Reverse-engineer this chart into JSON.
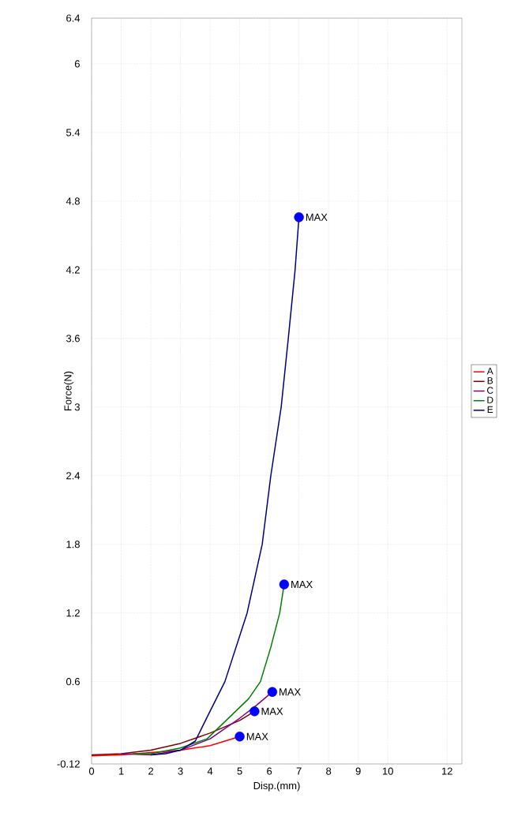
{
  "chart_data": {
    "type": "line",
    "xlabel": "Disp.(mm)",
    "ylabel": "Force(N)",
    "xlim": [
      0,
      12.5
    ],
    "xticks": [
      0,
      1,
      2,
      3,
      4,
      5,
      6,
      7,
      8,
      9,
      10,
      12
    ],
    "ylim": [
      -0.12,
      6.4
    ],
    "yticks": [
      -0.12,
      0.6,
      1.2,
      1.8,
      2.4,
      3,
      3.6,
      4.2,
      4.8,
      5.4,
      6,
      6.4
    ],
    "grid": true,
    "legend": "right",
    "line_style": "solid",
    "series": [
      {
        "name": "A",
        "color": "#ff0000",
        "x": [
          0,
          1,
          2,
          3,
          4,
          4.5,
          5
        ],
        "values": [
          -0.05,
          -0.04,
          -0.02,
          0.0,
          0.04,
          0.08,
          0.12
        ]
      },
      {
        "name": "B",
        "color": "#800000",
        "x": [
          0,
          1,
          2,
          3,
          4,
          5,
          5.5
        ],
        "values": [
          -0.04,
          -0.03,
          0.0,
          0.06,
          0.15,
          0.26,
          0.34
        ]
      },
      {
        "name": "C",
        "color": "#800080",
        "x": [
          1,
          2,
          3,
          4,
          5,
          5.6,
          6.1
        ],
        "values": [
          -0.03,
          -0.04,
          0.0,
          0.1,
          0.28,
          0.4,
          0.51
        ]
      },
      {
        "name": "D",
        "color": "#008000",
        "x": [
          1.4,
          2,
          3,
          3.9,
          4.7,
          5.3,
          5.7,
          6.05,
          6.35,
          6.5
        ],
        "values": [
          -0.03,
          -0.03,
          0.02,
          0.1,
          0.3,
          0.45,
          0.6,
          0.9,
          1.2,
          1.45
        ]
      },
      {
        "name": "E",
        "color": "#000080",
        "x": [
          2,
          2.5,
          3,
          3.5,
          3.92,
          4.5,
          5.25,
          5.76,
          6.05,
          6.4,
          6.64,
          6.87,
          7.0
        ],
        "values": [
          -0.04,
          -0.03,
          0.0,
          0.08,
          0.3,
          0.6,
          1.2,
          1.8,
          2.4,
          3.0,
          3.6,
          4.2,
          4.66
        ]
      },
      {
        "type": "scatter",
        "marker": "circle",
        "color": "#0000ff",
        "x": [
          5.0,
          5.5,
          6.1,
          6.5,
          7.0
        ],
        "values": [
          0.12,
          0.34,
          0.51,
          1.45,
          4.66
        ]
      }
    ],
    "annotations": [
      {
        "text": "MAX",
        "x": 5.0,
        "y": 0.12
      },
      {
        "text": "MAX",
        "x": 5.5,
        "y": 0.34
      },
      {
        "text": "MAX",
        "x": 6.1,
        "y": 0.51
      },
      {
        "text": "MAX",
        "x": 6.5,
        "y": 1.45
      },
      {
        "text": "MAX",
        "x": 7.0,
        "y": 4.66
      }
    ]
  }
}
